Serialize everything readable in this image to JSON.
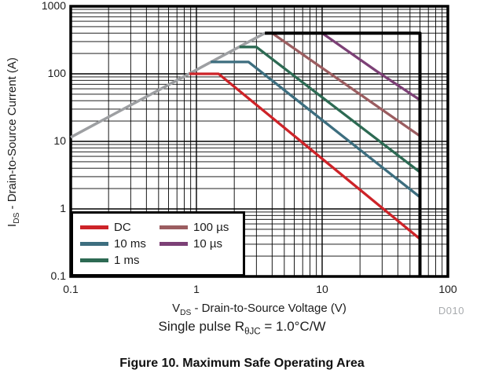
{
  "figure": {
    "caption": "Figure 10. Maximum Safe Operating Area",
    "plot_id": "D010",
    "condition_note": {
      "pre": "Single pulse R",
      "sub": "θJC",
      "post": " = 1.0°C/W"
    }
  },
  "axes": {
    "x": {
      "label_pre": "V",
      "label_sub": "DS",
      "label_post": " - Drain-to-Source Voltage (V)",
      "ticks": [
        "0.1",
        "1",
        "10",
        "100"
      ]
    },
    "y": {
      "label_pre": "I",
      "label_sub": "DS",
      "label_post": " - Drain-to-Source Current (A)",
      "ticks": [
        "1000",
        "100",
        "10",
        "1",
        "0.1"
      ]
    }
  },
  "legend": {
    "items": [
      {
        "label": "DC",
        "color": "#cd2328"
      },
      {
        "label": "10 ms",
        "color": "#3d6e7f"
      },
      {
        "label": "1 ms",
        "color": "#2d6a53"
      },
      {
        "label": "100 µs",
        "color": "#9b5d60"
      },
      {
        "label": "10 µs",
        "color": "#7c4076"
      }
    ]
  },
  "chart_data": {
    "type": "line",
    "title": "",
    "xlabel": "VDS - Drain-to-Source Voltage (V)",
    "ylabel": "IDS - Drain-to-Source Current (A)",
    "log_x": true,
    "log_y": true,
    "xlim": [
      0.1,
      100
    ],
    "ylim": [
      0.1,
      1000
    ],
    "grid": "log major and minor, black",
    "legend_position": "bottom-left inside plot",
    "series": [
      {
        "name": "rdson-limit-line",
        "color": "#9d9fa2",
        "width": 3.5,
        "points": [
          [
            0.1,
            11.5
          ],
          [
            3.5,
            400
          ]
        ]
      },
      {
        "name": "DC",
        "color": "#cd2328",
        "width": 3.3,
        "points": [
          [
            0.88,
            100
          ],
          [
            1.5,
            100
          ],
          [
            60,
            0.36
          ]
        ]
      },
      {
        "name": "10 ms",
        "color": "#3d6e7f",
        "width": 3.3,
        "points": [
          [
            1.3,
            150
          ],
          [
            2.6,
            150
          ],
          [
            60,
            1.5
          ]
        ]
      },
      {
        "name": "1 ms",
        "color": "#2d6a53",
        "width": 3.3,
        "points": [
          [
            2.2,
            250
          ],
          [
            3.0,
            250
          ],
          [
            60,
            3.5
          ]
        ]
      },
      {
        "name": "100 µs",
        "color": "#9b5d60",
        "width": 3.3,
        "points": [
          [
            4.0,
            400
          ],
          [
            60,
            12
          ]
        ]
      },
      {
        "name": "10 µs",
        "color": "#7c4076",
        "width": 3.3,
        "points": [
          [
            10,
            400
          ],
          [
            27,
            110
          ],
          [
            60,
            41
          ]
        ]
      },
      {
        "name": "pulse-current-voltage-limit",
        "color": "#000000",
        "width": 4,
        "points": [
          [
            3.5,
            400
          ],
          [
            60,
            400
          ],
          [
            60,
            0.1
          ]
        ]
      }
    ]
  }
}
